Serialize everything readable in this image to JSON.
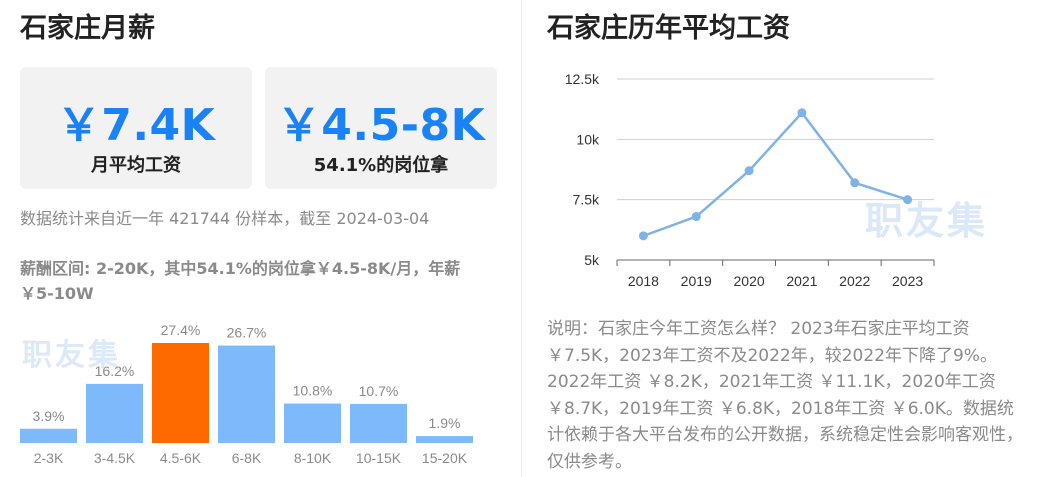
{
  "left": {
    "title": "石家庄月薪",
    "cards": [
      {
        "value": "￥7.4K",
        "label": "月平均工资"
      },
      {
        "value": "￥4.5-8K",
        "label": "54.1%的岗位拿"
      }
    ],
    "sample_note": "数据统计来自近一年 421744 份样本，截至 2024-03-04",
    "range_summary": "薪酬区间: 2-20K，其中54.1%的岗位拿￥4.5-8K/月，年薪￥5-10W",
    "watermark": "职友集"
  },
  "right": {
    "title": "石家庄历年平均工资",
    "watermark": "职友集",
    "explanation": "说明：石家庄今年工资怎么样？ 2023年石家庄平均工资￥7.5K，2023年工资不及2022年，较2022年下降了9%。2022年工资 ￥8.2K，2021年工资 ￥11.1K，2020年工资 ￥8.7K，2019年工资 ￥6.8K，2018年工资 ￥6.0K。数据统计依赖于各大平台发布的公开数据，系统稳定性会影响客观性，仅供参考。"
  },
  "colors": {
    "accent": "#1a82f5",
    "bar": "#7db9fb",
    "bar_highlight": "#ff6a00",
    "line": "#7fb2e5"
  },
  "chart_data": [
    {
      "type": "bar",
      "categories": [
        "2-3K",
        "3-4.5K",
        "4.5-6K",
        "6-8K",
        "8-10K",
        "10-15K",
        "15-20K"
      ],
      "values": [
        3.9,
        16.2,
        27.4,
        26.7,
        10.8,
        10.7,
        1.9
      ],
      "value_labels": [
        "3.9%",
        "16.2%",
        "27.4%",
        "26.7%",
        "10.8%",
        "10.7%",
        "1.9%"
      ],
      "highlight_index": 2,
      "title": "",
      "xlabel": "",
      "ylabel": "",
      "ylim": [
        0,
        27.4
      ],
      "grid": false
    },
    {
      "type": "line",
      "x": [
        "2018",
        "2019",
        "2020",
        "2021",
        "2022",
        "2023"
      ],
      "values": [
        6.0,
        6.8,
        8.7,
        11.1,
        8.2,
        7.5
      ],
      "y_ticks": [
        "5k",
        "7.5k",
        "10k",
        "12.5k"
      ],
      "y_tick_values": [
        5,
        7.5,
        10,
        12.5
      ],
      "ylim": [
        5,
        12.5
      ],
      "title": "",
      "xlabel": "",
      "ylabel": "",
      "grid": true
    }
  ]
}
